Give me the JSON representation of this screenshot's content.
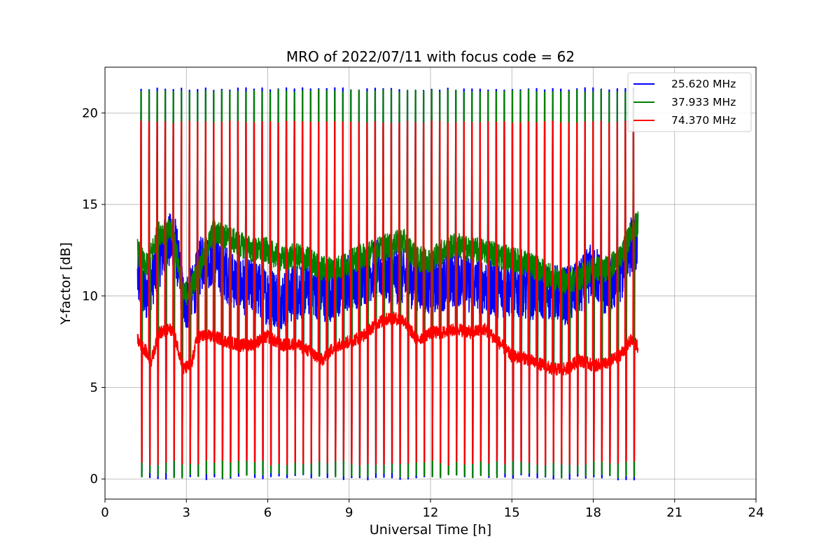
{
  "chart_data": {
    "type": "line",
    "title": "MRO of 2022/07/11 with focus code = 62",
    "xlabel": "Universal Time [h]",
    "ylabel": "Y-factor [dB]",
    "xlim": [
      0,
      24
    ],
    "ylim": [
      -1.1,
      22.5
    ],
    "xticks": [
      0,
      3,
      6,
      9,
      12,
      15,
      18,
      21,
      24
    ],
    "yticks": [
      0,
      5,
      10,
      15,
      20
    ],
    "grid": true,
    "legend_position": "top-right",
    "x_start": 1.2,
    "x_end": 19.65,
    "calibration_spike_count": 62,
    "series": [
      {
        "name": "25.620 MHz",
        "color": "#0000ff",
        "spike_top": 21.3,
        "spike_bottom": 0.1,
        "baseline_amplitude": 1.6,
        "baseline": [
          [
            1.2,
            11.0
          ],
          [
            1.5,
            10.0
          ],
          [
            2.0,
            12.0
          ],
          [
            2.3,
            13.0
          ],
          [
            2.6,
            12.8
          ],
          [
            2.9,
            9.5
          ],
          [
            3.2,
            10.0
          ],
          [
            3.6,
            12.0
          ],
          [
            4.0,
            12.0
          ],
          [
            4.5,
            11.2
          ],
          [
            5.0,
            10.6
          ],
          [
            5.5,
            10.4
          ],
          [
            6.0,
            10.0
          ],
          [
            6.5,
            9.8
          ],
          [
            7.0,
            10.2
          ],
          [
            7.5,
            10.5
          ],
          [
            8.0,
            10.2
          ],
          [
            8.5,
            10.2
          ],
          [
            9.0,
            10.8
          ],
          [
            9.5,
            11.0
          ],
          [
            10.0,
            11.5
          ],
          [
            10.5,
            11.2
          ],
          [
            11.0,
            11.0
          ],
          [
            11.5,
            10.8
          ],
          [
            12.0,
            10.6
          ],
          [
            12.5,
            10.8
          ],
          [
            13.0,
            11.0
          ],
          [
            13.5,
            10.6
          ],
          [
            14.0,
            10.6
          ],
          [
            14.5,
            10.4
          ],
          [
            15.0,
            10.4
          ],
          [
            15.5,
            10.2
          ],
          [
            16.0,
            10.4
          ],
          [
            16.5,
            10.2
          ],
          [
            17.0,
            10.0
          ],
          [
            17.5,
            10.4
          ],
          [
            18.0,
            11.5
          ],
          [
            18.5,
            10.2
          ],
          [
            19.0,
            11.2
          ],
          [
            19.4,
            12.8
          ],
          [
            19.65,
            13.0
          ]
        ]
      },
      {
        "name": "37.933 MHz",
        "color": "#008000",
        "spike_top": 21.2,
        "spike_bottom": 0.2,
        "baseline_amplitude": 0.7,
        "baseline": [
          [
            1.2,
            12.5
          ],
          [
            1.5,
            11.5
          ],
          [
            2.0,
            13.5
          ],
          [
            2.5,
            13.5
          ],
          [
            2.9,
            10.0
          ],
          [
            3.2,
            10.5
          ],
          [
            3.6,
            12.0
          ],
          [
            4.0,
            13.5
          ],
          [
            4.5,
            13.2
          ],
          [
            5.0,
            12.8
          ],
          [
            5.5,
            12.5
          ],
          [
            6.0,
            12.5
          ],
          [
            6.5,
            12.0
          ],
          [
            7.0,
            12.2
          ],
          [
            7.5,
            12.0
          ],
          [
            8.0,
            11.5
          ],
          [
            8.5,
            11.5
          ],
          [
            9.0,
            11.8
          ],
          [
            9.5,
            12.2
          ],
          [
            10.0,
            12.5
          ],
          [
            10.5,
            12.8
          ],
          [
            11.0,
            13.0
          ],
          [
            11.5,
            12.0
          ],
          [
            12.0,
            12.0
          ],
          [
            12.5,
            12.5
          ],
          [
            13.0,
            12.8
          ],
          [
            13.5,
            12.5
          ],
          [
            14.0,
            12.5
          ],
          [
            14.5,
            12.2
          ],
          [
            15.0,
            12.0
          ],
          [
            15.5,
            11.8
          ],
          [
            16.0,
            11.5
          ],
          [
            16.5,
            11.0
          ],
          [
            17.0,
            10.8
          ],
          [
            17.5,
            11.0
          ],
          [
            18.0,
            11.5
          ],
          [
            18.5,
            11.5
          ],
          [
            19.0,
            12.0
          ],
          [
            19.4,
            13.5
          ],
          [
            19.65,
            14.0
          ]
        ]
      },
      {
        "name": "74.370 MHz",
        "color": "#ff0000",
        "spike_top": 19.5,
        "spike_bottom": 0.9,
        "baseline_amplitude": 0.35,
        "baseline": [
          [
            1.2,
            7.6
          ],
          [
            1.5,
            7.0
          ],
          [
            1.7,
            6.4
          ],
          [
            2.0,
            8.0
          ],
          [
            2.5,
            8.2
          ],
          [
            2.9,
            6.0
          ],
          [
            3.2,
            6.3
          ],
          [
            3.4,
            7.8
          ],
          [
            4.0,
            7.8
          ],
          [
            4.5,
            7.5
          ],
          [
            5.0,
            7.3
          ],
          [
            5.5,
            7.4
          ],
          [
            6.0,
            7.8
          ],
          [
            6.5,
            7.3
          ],
          [
            7.0,
            7.4
          ],
          [
            7.5,
            7.0
          ],
          [
            8.0,
            6.5
          ],
          [
            8.5,
            7.3
          ],
          [
            9.0,
            7.5
          ],
          [
            9.5,
            7.8
          ],
          [
            10.0,
            8.5
          ],
          [
            10.5,
            8.8
          ],
          [
            11.0,
            8.7
          ],
          [
            11.5,
            7.6
          ],
          [
            12.0,
            8.0
          ],
          [
            12.5,
            8.0
          ],
          [
            13.0,
            8.2
          ],
          [
            13.5,
            8.0
          ],
          [
            14.0,
            8.2
          ],
          [
            14.5,
            7.5
          ],
          [
            15.0,
            6.7
          ],
          [
            15.5,
            6.6
          ],
          [
            16.0,
            6.3
          ],
          [
            16.5,
            6.0
          ],
          [
            17.0,
            6.0
          ],
          [
            17.5,
            6.5
          ],
          [
            18.0,
            6.2
          ],
          [
            18.5,
            6.3
          ],
          [
            19.0,
            6.8
          ],
          [
            19.4,
            7.6
          ],
          [
            19.65,
            7.2
          ]
        ]
      }
    ]
  }
}
